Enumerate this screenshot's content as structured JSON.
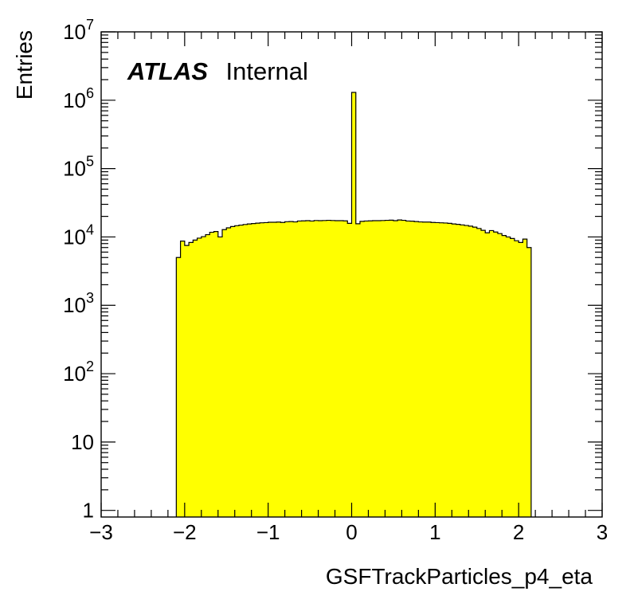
{
  "chart_data": {
    "type": "bar",
    "title": "",
    "xlabel": "GSFTrackParticles_p4_eta",
    "ylabel": "Entries",
    "xlim": [
      -3,
      3
    ],
    "ylim": [
      0.8,
      10000000
    ],
    "yscale": "log",
    "grid": false,
    "fill_color": "#ffff00",
    "line_color": "#000000",
    "annotation": {
      "bold": "ATLAS",
      "plain": "Internal"
    },
    "x_ticks": [
      {
        "value": -3,
        "label": "−3"
      },
      {
        "value": -2,
        "label": "−2"
      },
      {
        "value": -1,
        "label": "−1"
      },
      {
        "value": 0,
        "label": "0"
      },
      {
        "value": 1,
        "label": "1"
      },
      {
        "value": 2,
        "label": "2"
      },
      {
        "value": 3,
        "label": "3"
      }
    ],
    "y_ticks": [
      {
        "value": 1,
        "base": "1",
        "exp": ""
      },
      {
        "value": 10,
        "base": "10",
        "exp": ""
      },
      {
        "value": 100,
        "base": "10",
        "exp": "2"
      },
      {
        "value": 1000,
        "base": "10",
        "exp": "3"
      },
      {
        "value": 10000,
        "base": "10",
        "exp": "4"
      },
      {
        "value": 100000,
        "base": "10",
        "exp": "5"
      },
      {
        "value": 1000000,
        "base": "10",
        "exp": "6"
      },
      {
        "value": 10000000,
        "base": "10",
        "exp": "7"
      }
    ],
    "bin_width": 0.05,
    "bins": [
      {
        "x": -2.1,
        "y": 5000
      },
      {
        "x": -2.05,
        "y": 8700
      },
      {
        "x": -2.0,
        "y": 7500
      },
      {
        "x": -1.95,
        "y": 8300
      },
      {
        "x": -1.9,
        "y": 9000
      },
      {
        "x": -1.85,
        "y": 9600
      },
      {
        "x": -1.8,
        "y": 10100
      },
      {
        "x": -1.75,
        "y": 10800
      },
      {
        "x": -1.7,
        "y": 11700
      },
      {
        "x": -1.65,
        "y": 12000
      },
      {
        "x": -1.6,
        "y": 10000
      },
      {
        "x": -1.55,
        "y": 12800
      },
      {
        "x": -1.5,
        "y": 13600
      },
      {
        "x": -1.45,
        "y": 14200
      },
      {
        "x": -1.4,
        "y": 14600
      },
      {
        "x": -1.35,
        "y": 14900
      },
      {
        "x": -1.3,
        "y": 15200
      },
      {
        "x": -1.25,
        "y": 15500
      },
      {
        "x": -1.2,
        "y": 15700
      },
      {
        "x": -1.15,
        "y": 15900
      },
      {
        "x": -1.1,
        "y": 16100
      },
      {
        "x": -1.05,
        "y": 16200
      },
      {
        "x": -1.0,
        "y": 16400
      },
      {
        "x": -0.95,
        "y": 16400
      },
      {
        "x": -0.9,
        "y": 16500
      },
      {
        "x": -0.85,
        "y": 16300
      },
      {
        "x": -0.8,
        "y": 16700
      },
      {
        "x": -0.75,
        "y": 16800
      },
      {
        "x": -0.7,
        "y": 16600
      },
      {
        "x": -0.65,
        "y": 17100
      },
      {
        "x": -0.6,
        "y": 17200
      },
      {
        "x": -0.55,
        "y": 17300
      },
      {
        "x": -0.5,
        "y": 17100
      },
      {
        "x": -0.45,
        "y": 17400
      },
      {
        "x": -0.4,
        "y": 17300
      },
      {
        "x": -0.35,
        "y": 17400
      },
      {
        "x": -0.3,
        "y": 17500
      },
      {
        "x": -0.25,
        "y": 17400
      },
      {
        "x": -0.2,
        "y": 17300
      },
      {
        "x": -0.15,
        "y": 17300
      },
      {
        "x": -0.1,
        "y": 17200
      },
      {
        "x": -0.05,
        "y": 15800
      },
      {
        "x": 0.0,
        "y": 1300000
      },
      {
        "x": 0.05,
        "y": 15600
      },
      {
        "x": 0.1,
        "y": 16900
      },
      {
        "x": 0.15,
        "y": 17100
      },
      {
        "x": 0.2,
        "y": 17200
      },
      {
        "x": 0.25,
        "y": 17300
      },
      {
        "x": 0.3,
        "y": 17300
      },
      {
        "x": 0.35,
        "y": 17400
      },
      {
        "x": 0.4,
        "y": 17500
      },
      {
        "x": 0.45,
        "y": 17600
      },
      {
        "x": 0.5,
        "y": 17300
      },
      {
        "x": 0.55,
        "y": 17700
      },
      {
        "x": 0.6,
        "y": 17500
      },
      {
        "x": 0.65,
        "y": 17100
      },
      {
        "x": 0.7,
        "y": 17000
      },
      {
        "x": 0.75,
        "y": 16800
      },
      {
        "x": 0.8,
        "y": 16600
      },
      {
        "x": 0.85,
        "y": 16500
      },
      {
        "x": 0.9,
        "y": 16500
      },
      {
        "x": 0.95,
        "y": 16300
      },
      {
        "x": 1.0,
        "y": 16200
      },
      {
        "x": 1.05,
        "y": 16100
      },
      {
        "x": 1.1,
        "y": 16000
      },
      {
        "x": 1.15,
        "y": 15800
      },
      {
        "x": 1.2,
        "y": 15500
      },
      {
        "x": 1.25,
        "y": 15300
      },
      {
        "x": 1.3,
        "y": 15000
      },
      {
        "x": 1.35,
        "y": 14700
      },
      {
        "x": 1.4,
        "y": 14400
      },
      {
        "x": 1.45,
        "y": 13900
      },
      {
        "x": 1.5,
        "y": 13300
      },
      {
        "x": 1.55,
        "y": 12500
      },
      {
        "x": 1.6,
        "y": 11500
      },
      {
        "x": 1.65,
        "y": 12400
      },
      {
        "x": 1.7,
        "y": 11800
      },
      {
        "x": 1.75,
        "y": 11200
      },
      {
        "x": 1.8,
        "y": 10500
      },
      {
        "x": 1.85,
        "y": 10000
      },
      {
        "x": 1.9,
        "y": 9500
      },
      {
        "x": 1.95,
        "y": 8800
      },
      {
        "x": 2.0,
        "y": 8300
      },
      {
        "x": 2.05,
        "y": 9300
      },
      {
        "x": 2.1,
        "y": 7000
      }
    ]
  }
}
